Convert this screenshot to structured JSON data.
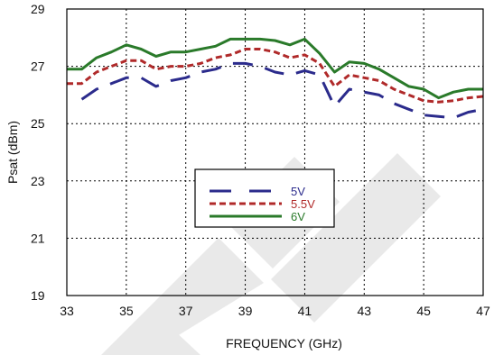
{
  "chart_data": {
    "type": "line",
    "xlabel": "FREQUENCY (GHz)",
    "ylabel": "Psat (dBm)",
    "xlim": [
      33,
      47
    ],
    "ylim": [
      19,
      29
    ],
    "xticks": [
      "33",
      "35",
      "37",
      "39",
      "41",
      "43",
      "45",
      "47"
    ],
    "yticks": [
      "19",
      "21",
      "23",
      "25",
      "27",
      "29"
    ],
    "grid": true,
    "legend_position": "center",
    "series": [
      {
        "name": "5V",
        "color": "#2b2b8c",
        "dash": "long-dash",
        "x": [
          33.5,
          34,
          34.5,
          35,
          35.5,
          36,
          36.5,
          37,
          37.5,
          38,
          38.5,
          39,
          39.5,
          40,
          40.5,
          41,
          41.5,
          42,
          42.5,
          43,
          43.5,
          44,
          44.5,
          45,
          45.5,
          46,
          46.5,
          47
        ],
        "values": [
          25.85,
          26.2,
          26.4,
          26.6,
          26.6,
          26.3,
          26.5,
          26.6,
          26.8,
          26.9,
          27.1,
          27.1,
          27.0,
          26.8,
          26.7,
          26.85,
          26.7,
          25.6,
          26.2,
          26.1,
          26.0,
          25.7,
          25.5,
          25.3,
          25.25,
          25.2,
          25.4,
          25.5
        ]
      },
      {
        "name": "5.5V",
        "color": "#b02a2a",
        "dash": "short-dash",
        "x": [
          33,
          33.5,
          34,
          34.5,
          35,
          35.5,
          36,
          36.5,
          37,
          37.5,
          38,
          38.5,
          39,
          39.5,
          40,
          40.5,
          41,
          41.5,
          42,
          42.5,
          43,
          43.5,
          44,
          44.5,
          45,
          45.5,
          46,
          46.5,
          47
        ],
        "values": [
          26.4,
          26.4,
          26.8,
          27.0,
          27.2,
          27.2,
          26.9,
          27.0,
          27.0,
          27.1,
          27.3,
          27.4,
          27.6,
          27.6,
          27.5,
          27.3,
          27.4,
          27.1,
          26.3,
          26.7,
          26.6,
          26.5,
          26.2,
          26.0,
          25.8,
          25.75,
          25.8,
          25.9,
          25.95
        ]
      },
      {
        "name": "6V",
        "color": "#2a7a2a",
        "dash": "solid",
        "x": [
          33,
          33.5,
          34,
          34.5,
          35,
          35.5,
          36,
          36.5,
          37,
          37.5,
          38,
          38.5,
          39,
          39.5,
          40,
          40.5,
          41,
          41.5,
          42,
          42.5,
          43,
          43.5,
          44,
          44.5,
          45,
          45.5,
          46,
          46.5,
          47
        ],
        "values": [
          26.9,
          26.9,
          27.3,
          27.5,
          27.75,
          27.6,
          27.35,
          27.5,
          27.5,
          27.6,
          27.7,
          27.95,
          27.95,
          27.95,
          27.9,
          27.75,
          27.95,
          27.45,
          26.8,
          27.15,
          27.1,
          26.9,
          26.6,
          26.3,
          26.2,
          25.9,
          26.1,
          26.2,
          26.2
        ]
      }
    ]
  }
}
